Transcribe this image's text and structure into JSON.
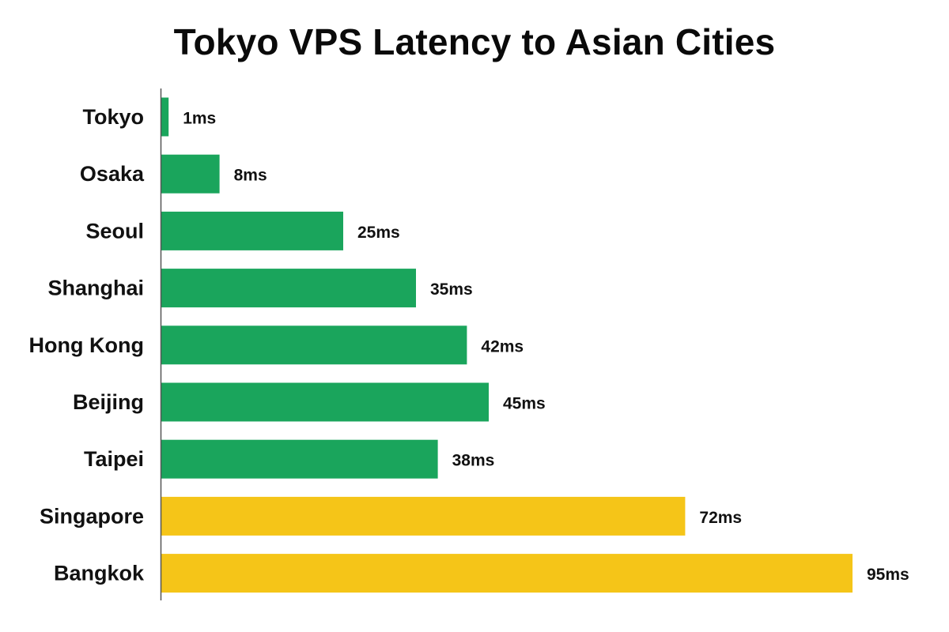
{
  "chart_data": {
    "type": "bar",
    "orientation": "horizontal",
    "title": "Tokyo VPS Latency to Asian Cities",
    "xlabel": "",
    "ylabel": "",
    "unit": "ms",
    "xlim": [
      0,
      100
    ],
    "grid": false,
    "legend": "none",
    "categories": [
      "Tokyo",
      "Osaka",
      "Seoul",
      "Shanghai",
      "Hong Kong",
      "Beijing",
      "Taipei",
      "Singapore",
      "Bangkok"
    ],
    "values": [
      1,
      8,
      25,
      35,
      42,
      45,
      38,
      72,
      95
    ],
    "value_labels": [
      "1ms",
      "8ms",
      "25ms",
      "35ms",
      "42ms",
      "45ms",
      "38ms",
      "72ms",
      "95ms"
    ],
    "bar_colors": [
      "#1aa55c",
      "#1aa55c",
      "#1aa55c",
      "#1aa55c",
      "#1aa55c",
      "#1aa55c",
      "#1aa55c",
      "#f5c518",
      "#f5c518"
    ]
  },
  "colors": {
    "green": "#1aa55c",
    "yellow": "#f5c518",
    "axis": "#555555",
    "text": "#111111"
  }
}
